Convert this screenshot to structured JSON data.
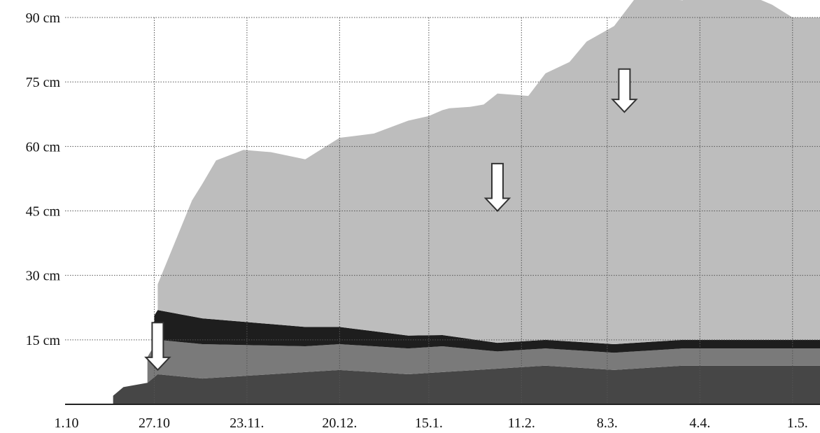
{
  "chart_data": {
    "type": "area",
    "title": "",
    "xlabel": "",
    "ylabel": "",
    "y_ticks": [
      {
        "value": 15,
        "label": "15 cm"
      },
      {
        "value": 30,
        "label": "30 cm"
      },
      {
        "value": 45,
        "label": "45 cm"
      },
      {
        "value": 60,
        "label": "60 cm"
      },
      {
        "value": 75,
        "label": "75 cm"
      },
      {
        "value": 90,
        "label": "90 cm"
      }
    ],
    "x_ticks": [
      {
        "value": 0,
        "label": "1.10"
      },
      {
        "value": 26,
        "label": "27.10"
      },
      {
        "value": 53,
        "label": "23.11."
      },
      {
        "value": 80,
        "label": "20.12."
      },
      {
        "value": 106,
        "label": "15.1."
      },
      {
        "value": 133,
        "label": "11.2."
      },
      {
        "value": 158,
        "label": "8.3."
      },
      {
        "value": 185,
        "label": "4.4."
      },
      {
        "value": 212,
        "label": "1.5."
      }
    ],
    "xlim": [
      0,
      220
    ],
    "ylim": [
      0,
      90
    ],
    "grid": true,
    "colors": {
      "old_layer": "#1e1e1e",
      "dense_layer": "#464646",
      "mid_layer": "#7a7a7a",
      "new_snow": "#bdbdbd",
      "surface_hoar": "#8c8c8c",
      "arrow_fill": "#ffffff",
      "arrow_stroke": "#333333"
    },
    "series": [
      {
        "values": [
          [
            14,
            2
          ],
          [
            17,
            4
          ],
          [
            24,
            5
          ],
          [
            27,
            7
          ],
          [
            40,
            6
          ],
          [
            60,
            7
          ],
          [
            80,
            8
          ],
          [
            100,
            7
          ],
          [
            120,
            8
          ],
          [
            140,
            9
          ],
          [
            160,
            8
          ],
          [
            180,
            9
          ],
          [
            220,
            9
          ]
        ]
      },
      {
        "values": [
          [
            24,
            6
          ],
          [
            27,
            8
          ],
          [
            40,
            8
          ],
          [
            55,
            7
          ],
          [
            70,
            6
          ],
          [
            90,
            6
          ],
          [
            110,
            6
          ],
          [
            126,
            4
          ],
          [
            160,
            4
          ],
          [
            220,
            4
          ]
        ]
      },
      {
        "values": [
          [
            26,
            7
          ],
          [
            40,
            6
          ],
          [
            60,
            5
          ],
          [
            80,
            4
          ],
          [
            100,
            3
          ],
          [
            126,
            2
          ],
          [
            160,
            2
          ],
          [
            220,
            2
          ]
        ]
      },
      {
        "values": [
          [
            27,
            6
          ],
          [
            37,
            27
          ],
          [
            44,
            37
          ],
          [
            52,
            40
          ],
          [
            60,
            40
          ],
          [
            70,
            39
          ],
          [
            80,
            44
          ],
          [
            90,
            46
          ],
          [
            100,
            50
          ],
          [
            106,
            51
          ],
          [
            112,
            53
          ],
          [
            118,
            54
          ],
          [
            122,
            55
          ],
          [
            126,
            58
          ],
          [
            135,
            57
          ],
          [
            140,
            62
          ],
          [
            147,
            65
          ],
          [
            152,
            70
          ],
          [
            160,
            74
          ],
          [
            166,
            80
          ],
          [
            172,
            80
          ],
          [
            180,
            79
          ],
          [
            186,
            86
          ],
          [
            194,
            84
          ],
          [
            200,
            80
          ],
          [
            206,
            78
          ],
          [
            212,
            75
          ],
          [
            220,
            75
          ]
        ]
      }
    ],
    "arrows": [
      {
        "x": 27,
        "y_top": 19,
        "y_bottom": 8
      },
      {
        "x": 126,
        "y_top": 56,
        "y_bottom": 45
      },
      {
        "x": 163,
        "y_top": 78,
        "y_bottom": 68
      }
    ]
  }
}
